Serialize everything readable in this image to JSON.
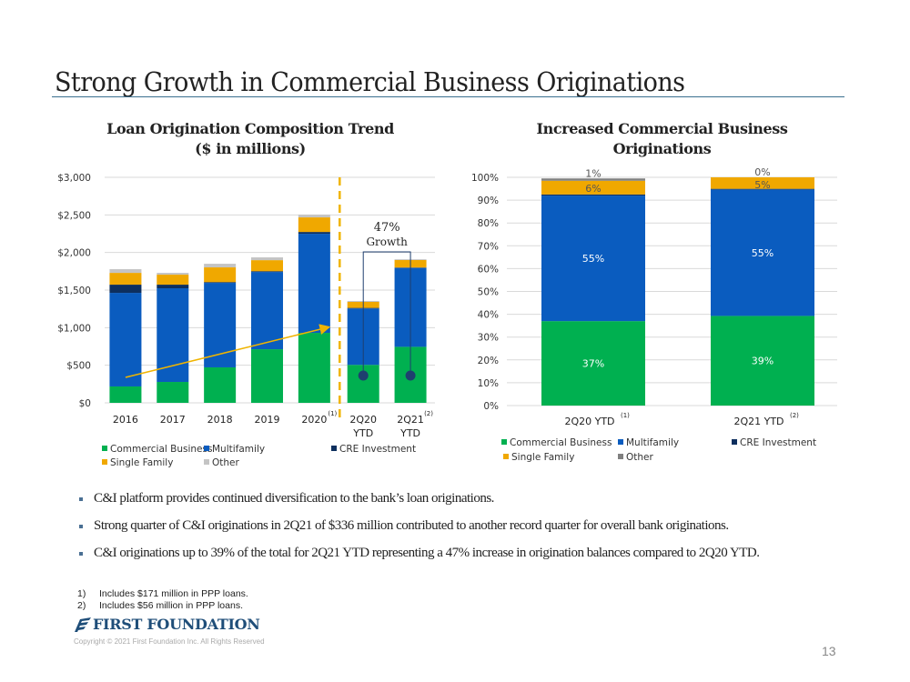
{
  "slide": {
    "title": "Strong Growth in Commercial Business Originations",
    "page_number": "13",
    "copyright": "Copyright © 2021 First Foundation Inc. All Rights Reserved",
    "logo_text": "FIRST FOUNDATION"
  },
  "colors": {
    "commercial_business": "#00b050",
    "multifamily": "#0a5cbf",
    "cre_investment": "#0d2f5e",
    "single_family": "#f0a800",
    "other_left": "#c4c4c4",
    "other_right": "#808080",
    "arrow": "#f0b400",
    "bracket": "#1f3f6f"
  },
  "bullets": [
    "C&I platform provides continued diversification to the bank’s loan originations.",
    "Strong quarter of C&I originations in 2Q21 of $336 million contributed to another record quarter for overall bank originations.",
    "C&I originations up to 39% of the total for 2Q21 YTD representing a 47% increase in origination balances compared to 2Q20 YTD."
  ],
  "footnotes": [
    {
      "num": "1)",
      "text": "Includes $171 million in PPP loans."
    },
    {
      "num": "2)",
      "text": "Includes $56 million in PPP loans."
    }
  ],
  "chart_data": [
    {
      "type": "bar",
      "stacked": true,
      "title": "Loan Origination Composition Trend",
      "subtitle": "($ in millions)",
      "categories": [
        "2016",
        "2017",
        "2018",
        "2019",
        "2020",
        "2Q20\nYTD",
        "2Q21\nYTD"
      ],
      "category_footnotes": [
        "",
        "",
        "",
        "",
        "(1)",
        "",
        "(2)"
      ],
      "series": [
        {
          "name": "Commercial Business",
          "values": [
            218,
            278,
            472,
            713,
            931,
            505,
            745
          ]
        },
        {
          "name": "Multifamily",
          "values": [
            1245,
            1246,
            1124,
            1028,
            1318,
            750,
            1050
          ]
        },
        {
          "name": "CRE Investment",
          "values": [
            109,
            48,
            10,
            10,
            24,
            8,
            5
          ]
        },
        {
          "name": "Single Family",
          "values": [
            157,
            133,
            196,
            147,
            194,
            80,
            100
          ]
        },
        {
          "name": "Other",
          "values": [
            49,
            24,
            48,
            37,
            36,
            12,
            10
          ]
        }
      ],
      "ylim": [
        0,
        3000
      ],
      "yticks": [
        "$0",
        "$500",
        "$1,000",
        "$1,500",
        "$2,000",
        "$2,500",
        "$3,000"
      ],
      "grid": true,
      "legend": "bottom",
      "annotations": {
        "growth_label_1": "47%",
        "growth_label_2": "Growth",
        "trend_arrow": "2016 to 2020 upward trend",
        "divider": "dashed line between 2020 and 2Q20 YTD"
      }
    },
    {
      "type": "bar",
      "stacked": true,
      "percent": true,
      "title": "Increased Commercial Business Originations",
      "categories": [
        "2Q20 YTD",
        "2Q21 YTD"
      ],
      "category_footnotes": [
        "(1)",
        "(2)"
      ],
      "series": [
        {
          "name": "Commercial Business",
          "values": [
            37,
            39
          ],
          "labels": [
            "37%",
            "39%"
          ]
        },
        {
          "name": "Multifamily",
          "values": [
            55,
            55
          ],
          "labels": [
            "55%",
            "55%"
          ]
        },
        {
          "name": "CRE Investment",
          "values": [
            0.5,
            0.3
          ],
          "labels": [
            "",
            ""
          ]
        },
        {
          "name": "Single Family",
          "values": [
            6,
            5
          ],
          "labels": [
            "6%",
            "5%"
          ]
        },
        {
          "name": "Other",
          "values": [
            1,
            0
          ],
          "labels": [
            "1%",
            "0%"
          ]
        }
      ],
      "ylim": [
        0,
        100
      ],
      "yticks": [
        "0%",
        "10%",
        "20%",
        "30%",
        "40%",
        "50%",
        "60%",
        "70%",
        "80%",
        "90%",
        "100%"
      ],
      "grid": true,
      "legend": "bottom"
    }
  ]
}
